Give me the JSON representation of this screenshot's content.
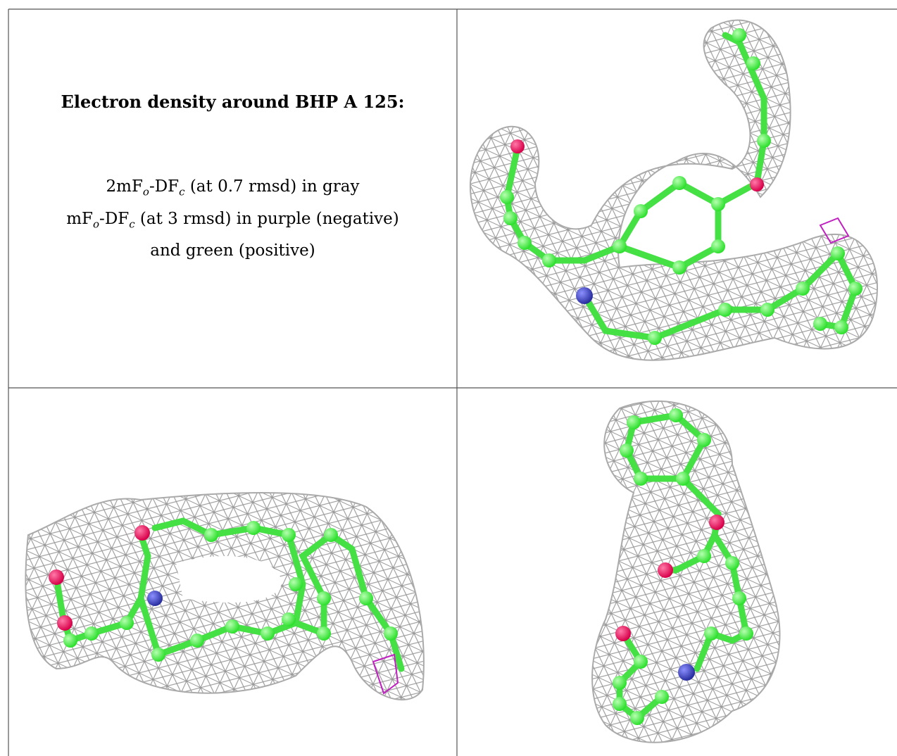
{
  "header": {
    "title": "Electron density around BHP A 125:"
  },
  "legend": {
    "lines": [
      [
        {
          "text": "2mF"
        },
        {
          "sub": "o"
        },
        {
          "text": "-DF"
        },
        {
          "sub": "c"
        },
        {
          "text": " (at 0.7 rmsd) in gray"
        }
      ],
      [
        {
          "text": "mF"
        },
        {
          "sub": "o"
        },
        {
          "text": "-DF"
        },
        {
          "sub": "c"
        },
        {
          "text": " (at 3 rmsd) in purple (negative)"
        }
      ],
      [
        {
          "text": "and green (positive)"
        }
      ]
    ]
  }
}
